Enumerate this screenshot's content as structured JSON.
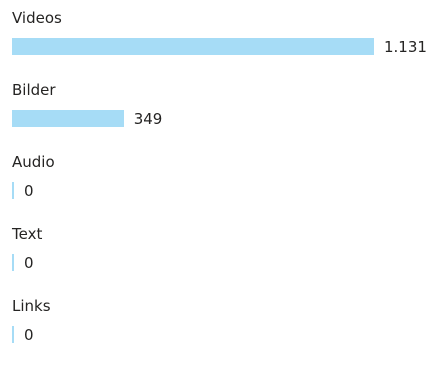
{
  "chart_data": {
    "type": "bar",
    "orientation": "horizontal",
    "categories": [
      "Videos",
      "Bilder",
      "Audio",
      "Text",
      "Links"
    ],
    "values": [
      1131,
      349,
      0,
      0,
      0
    ],
    "value_labels": [
      "1.131",
      "349",
      "0",
      "0",
      "0"
    ],
    "xlim": [
      0,
      1131
    ],
    "grid": false,
    "legend": "none",
    "bar_color": "#a6dcf6",
    "text_color": "#252423"
  }
}
